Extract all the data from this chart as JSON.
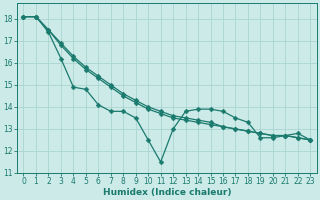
{
  "xlabel": "Humidex (Indice chaleur)",
  "bg_color": "#cceae7",
  "grid_color": "#aad4d0",
  "line_color": "#1a7a6e",
  "xlim": [
    -0.5,
    23.5
  ],
  "ylim": [
    11,
    18.7
  ],
  "yticks": [
    11,
    12,
    13,
    14,
    15,
    16,
    17,
    18
  ],
  "xticks": [
    0,
    1,
    2,
    3,
    4,
    5,
    6,
    7,
    8,
    9,
    10,
    11,
    12,
    13,
    14,
    15,
    16,
    17,
    18,
    19,
    20,
    21,
    22,
    23
  ],
  "series": [
    {
      "x": [
        0,
        1,
        2,
        3,
        4,
        5,
        6,
        7,
        8,
        9,
        10,
        11,
        12,
        13,
        14,
        15,
        16,
        17,
        18,
        19,
        20,
        21,
        22,
        23
      ],
      "y": [
        18.1,
        18.1,
        17.4,
        16.2,
        14.9,
        14.8,
        14.1,
        13.8,
        13.8,
        13.5,
        12.5,
        11.5,
        13.0,
        13.8,
        13.9,
        13.9,
        13.8,
        13.5,
        13.3,
        12.6,
        12.6,
        12.7,
        12.8,
        12.5
      ]
    },
    {
      "x": [
        0,
        1,
        2,
        3,
        4,
        5,
        6,
        7,
        8,
        9,
        10,
        11,
        12,
        13,
        14,
        15,
        16,
        17,
        18,
        19,
        20,
        21,
        22,
        23
      ],
      "y": [
        18.1,
        18.1,
        17.5,
        16.8,
        16.2,
        15.7,
        15.3,
        14.9,
        14.5,
        14.2,
        13.9,
        13.7,
        13.5,
        13.4,
        13.3,
        13.2,
        13.1,
        13.0,
        12.9,
        12.8,
        12.7,
        12.7,
        12.6,
        12.5
      ]
    },
    {
      "x": [
        0,
        1,
        2,
        3,
        4,
        5,
        6,
        7,
        8,
        9,
        10,
        11,
        12,
        13,
        14,
        15,
        16,
        17,
        18,
        19,
        20,
        21,
        22,
        23
      ],
      "y": [
        18.1,
        18.1,
        17.5,
        16.9,
        16.3,
        15.8,
        15.4,
        15.0,
        14.6,
        14.3,
        14.0,
        13.8,
        13.6,
        13.5,
        13.4,
        13.3,
        13.1,
        13.0,
        12.9,
        12.8,
        12.7,
        12.7,
        12.6,
        12.5
      ]
    }
  ],
  "markersize": 2.5,
  "linewidth": 0.9
}
